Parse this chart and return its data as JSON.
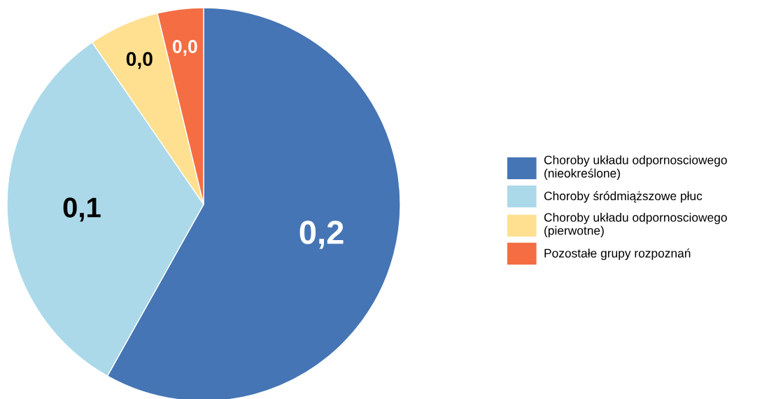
{
  "chart_data": {
    "type": "pie",
    "categories": [
      "Choroby układu odpornosciowego (nieokreślone)",
      "Choroby śródmiąższowe płuc",
      "Choroby układu odpornosciowego (pierwotne)",
      "Pozostałe grupy rozpoznań"
    ],
    "values": [
      0.2,
      0.111,
      0.02,
      0.013
    ],
    "value_labels": [
      "0,2",
      "0,1",
      "0,0",
      "0,0"
    ],
    "colors": [
      "#4575b4",
      "#abd9e9",
      "#fee090",
      "#f46d43"
    ],
    "legend": "right"
  }
}
